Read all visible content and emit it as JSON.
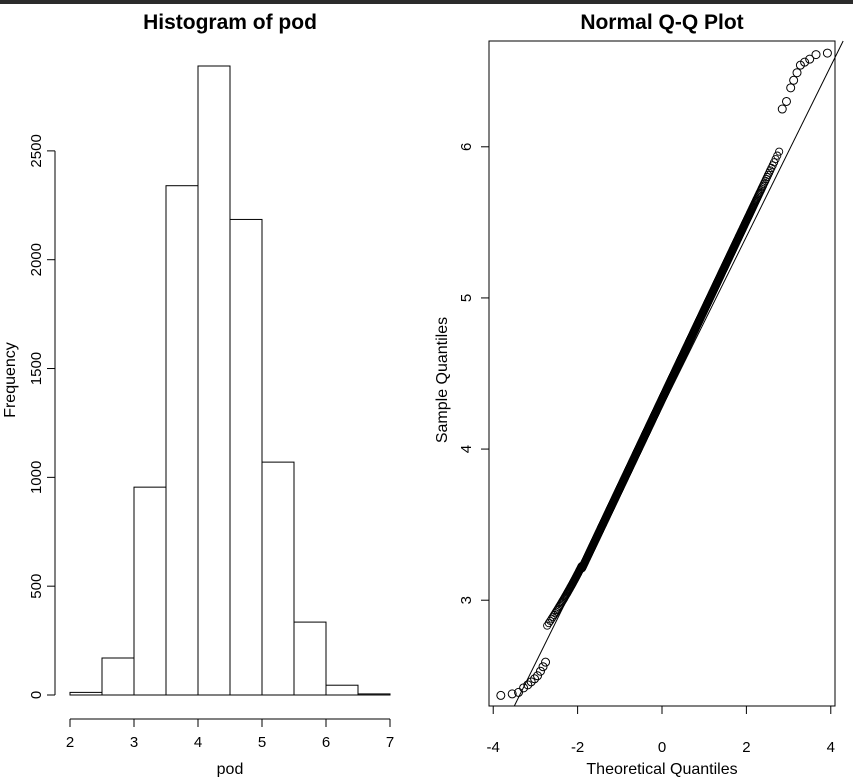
{
  "chart_data": [
    {
      "type": "bar",
      "title": "Histogram of pod",
      "xlabel": "pod",
      "ylabel": "Frequency",
      "bins": [
        [
          2.0,
          2.5
        ],
        [
          2.5,
          3.0
        ],
        [
          3.0,
          3.5
        ],
        [
          3.5,
          4.0
        ],
        [
          4.0,
          4.5
        ],
        [
          4.5,
          5.0
        ],
        [
          5.0,
          5.5
        ],
        [
          5.5,
          6.0
        ],
        [
          6.0,
          6.5
        ],
        [
          6.5,
          7.0
        ]
      ],
      "values": [
        12,
        170,
        955,
        2340,
        2890,
        2185,
        1070,
        335,
        45,
        5
      ],
      "xlim": [
        2,
        7
      ],
      "ylim": [
        0,
        2890
      ],
      "xticks": [
        "2",
        "3",
        "4",
        "5",
        "6",
        "7"
      ],
      "yticks": [
        "0",
        "500",
        "1000",
        "1500",
        "2000",
        "2500"
      ],
      "grid": false
    },
    {
      "type": "scatter",
      "title": "Normal Q-Q Plot",
      "xlabel": "Theoretical Quantiles",
      "ylabel": "Sample Quantiles",
      "xlim": [
        -4.1,
        4.1
      ],
      "ylim": [
        2.3,
        6.7
      ],
      "xticks": [
        "-4",
        "-2",
        "0",
        "2",
        "4"
      ],
      "yticks": [
        "3",
        "4",
        "5",
        "6"
      ],
      "reference_line": {
        "intercept": 4.33,
        "slope": 0.58
      },
      "n_points": 10000,
      "tail_points": [
        {
          "x": -3.82,
          "y": 2.37
        },
        {
          "x": -3.55,
          "y": 2.38
        },
        {
          "x": -3.4,
          "y": 2.39
        },
        {
          "x": -3.28,
          "y": 2.42
        },
        {
          "x": -3.18,
          "y": 2.44
        },
        {
          "x": -3.1,
          "y": 2.46
        },
        {
          "x": -3.02,
          "y": 2.48
        },
        {
          "x": -2.95,
          "y": 2.5
        },
        {
          "x": -2.88,
          "y": 2.53
        },
        {
          "x": -2.82,
          "y": 2.56
        },
        {
          "x": -2.76,
          "y": 2.59
        },
        {
          "x": 2.85,
          "y": 6.25
        },
        {
          "x": 2.95,
          "y": 6.3
        },
        {
          "x": 3.05,
          "y": 6.39
        },
        {
          "x": 3.12,
          "y": 6.44
        },
        {
          "x": 3.2,
          "y": 6.49
        },
        {
          "x": 3.28,
          "y": 6.54
        },
        {
          "x": 3.38,
          "y": 6.56
        },
        {
          "x": 3.5,
          "y": 6.58
        },
        {
          "x": 3.65,
          "y": 6.61
        },
        {
          "x": 3.92,
          "y": 6.62
        }
      ],
      "grid": false
    }
  ]
}
